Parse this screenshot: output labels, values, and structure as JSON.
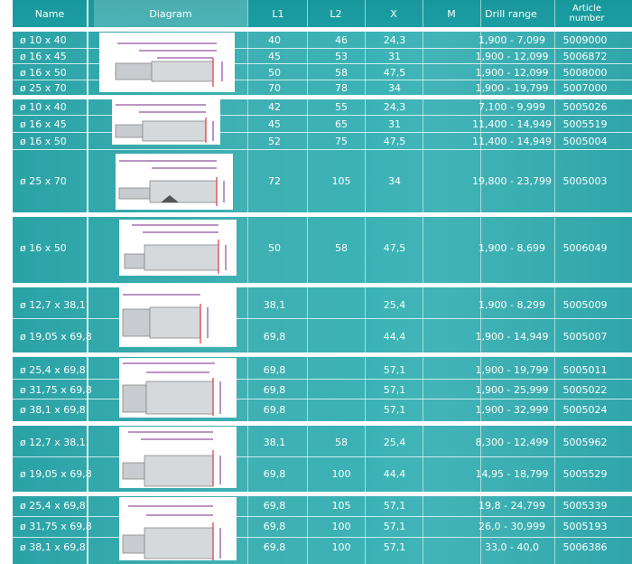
{
  "headers": {
    "name": "Name",
    "diagram": "Diagram",
    "l1": "L1",
    "l2": "L2",
    "x": "X",
    "m": "M",
    "drill": "Drill range",
    "article": "Article number"
  },
  "rows": [
    {
      "name": "ø 10 x 40",
      "l1": "40",
      "l2": "46",
      "x": "24,3",
      "drill": "1,900 - 7,099",
      "article": "5009000"
    },
    {
      "name": "ø 16 x 45",
      "l1": "45",
      "l2": "53",
      "x": "31",
      "drill": "1,900 - 12,099",
      "article": "5006872"
    },
    {
      "name": "ø 16 x 50",
      "l1": "50",
      "l2": "58",
      "x": "47,5",
      "drill": "1,900 - 12,099",
      "article": "5008000"
    },
    {
      "name": "ø 25 x 70",
      "l1": "70",
      "l2": "78",
      "x": "34",
      "drill": "1,900 - 19,799",
      "article": "5007000"
    },
    {
      "name": "ø 10 x 40",
      "l1": "42",
      "l2": "55",
      "x": "24,3",
      "drill": "7,100 - 9,999",
      "article": "5005026"
    },
    {
      "name": "ø 16 x 45",
      "l1": "45",
      "l2": "65",
      "x": "31",
      "drill": "11,400 - 14,949",
      "article": "5005519"
    },
    {
      "name": "ø 16 x 50",
      "l1": "52",
      "l2": "75",
      "x": "47,5",
      "drill": "11,400 - 14,949",
      "article": "5005004"
    },
    {
      "name": "ø 25 x 70",
      "l1": "72",
      "l2": "105",
      "x": "34",
      "drill": "19,800 - 23,799",
      "article": "5005003"
    },
    {
      "name": "ø 16 x 50",
      "l1": "50",
      "l2": "58",
      "x": "47,5",
      "drill": "1,900 - 8,699",
      "article": "5006049"
    },
    {
      "name": "ø 12,7 x 38,1",
      "l1": "38,1",
      "l2": "",
      "x": "25,4",
      "drill": "1,900 - 8,299",
      "article": "5005009"
    },
    {
      "name": "ø 19,05 x 69,8",
      "l1": "69,8",
      "l2": "",
      "x": "44,4",
      "drill": "1,900 - 14,949",
      "article": "5005007"
    },
    {
      "name": "ø 25,4 x 69,8",
      "l1": "69,8",
      "l2": "",
      "x": "57,1",
      "drill": "1,900 - 19,799",
      "article": "5005011"
    },
    {
      "name": "ø 31,75 x 69,8",
      "l1": "69,8",
      "l2": "",
      "x": "57,1",
      "drill": "1,900 - 25,999",
      "article": "5005022"
    },
    {
      "name": "ø 38,1 x 69,8",
      "l1": "69,8",
      "l2": "",
      "x": "57,1",
      "drill": "1,900 - 32,999",
      "article": "5005024"
    },
    {
      "name": "ø 12,7 x 38,1",
      "l1": "38,1",
      "l2": "58",
      "x": "25,4",
      "drill": "8,300 - 12,499",
      "article": "5005962"
    },
    {
      "name": "ø 19,05 x 69,8",
      "l1": "69,8",
      "l2": "100",
      "x": "44,4",
      "drill": "14,95 - 18,799",
      "article": "5005529"
    },
    {
      "name": "ø 25,4 x 69,8",
      "l1": "69,8",
      "l2": "105",
      "x": "57,1",
      "drill": "19,8 - 24,799",
      "article": "5005339"
    },
    {
      "name": "ø 31,75 x 69,8",
      "l1": "69,8",
      "l2": "100",
      "x": "57,1",
      "drill": "26,0 - 30,999",
      "article": "5005193"
    },
    {
      "name": "ø 38,1 x 69,8",
      "l1": "69,8",
      "l2": "100",
      "x": "57,1",
      "drill": "33,0 - 40,0",
      "article": "5006386"
    }
  ],
  "colors": {
    "header": "#1b9da1",
    "body": "#35adb0",
    "text": "#ffffff",
    "diagram_dim": "#7a2a8a",
    "diagram_red": "#e0343c"
  },
  "icons": [
    "shaft-diagram-icon"
  ]
}
